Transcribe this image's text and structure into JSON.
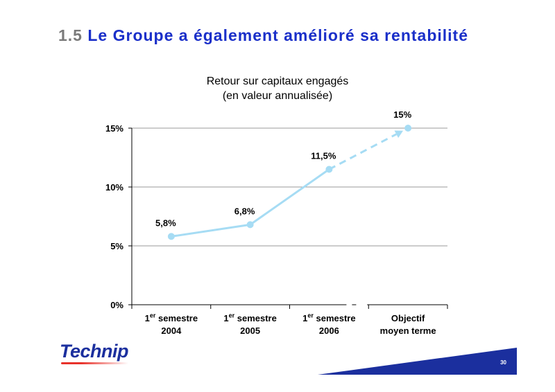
{
  "slide": {
    "title_number": "1.5",
    "title_text": "Le Groupe a également amélioré sa rentabilité",
    "logo_text": "Technip",
    "page_number": "30"
  },
  "colors": {
    "title_blue": "#1a2fc9",
    "title_number_gray": "#7a7a7a",
    "line": "#a6dcf4",
    "footer_band": "#1b2f9e"
  },
  "chart_data": {
    "type": "line",
    "title": "Retour sur capitaux engagés",
    "subtitle": "(en valeur annualisée)",
    "categories": [
      {
        "prefix": "1",
        "sup": "er",
        "suffix": " semestre",
        "line2": "2004"
      },
      {
        "prefix": "1",
        "sup": "er",
        "suffix": " semestre",
        "line2": "2005"
      },
      {
        "prefix": "1",
        "sup": "er",
        "suffix": " semestre",
        "line2": "2006"
      },
      {
        "prefix": "Objectif",
        "sup": "",
        "suffix": "",
        "line2": "moyen terme"
      }
    ],
    "values": [
      5.8,
      6.8,
      11.5,
      15
    ],
    "data_labels": [
      "5,8%",
      "6,8%",
      "11,5%",
      "15%"
    ],
    "dashed_from_index": 2,
    "ylim": [
      0,
      15
    ],
    "yticks": [
      0,
      5,
      10,
      15
    ],
    "ytick_labels": [
      "0%",
      "5%",
      "10%",
      "15%"
    ],
    "grid": true,
    "legend": "none"
  }
}
